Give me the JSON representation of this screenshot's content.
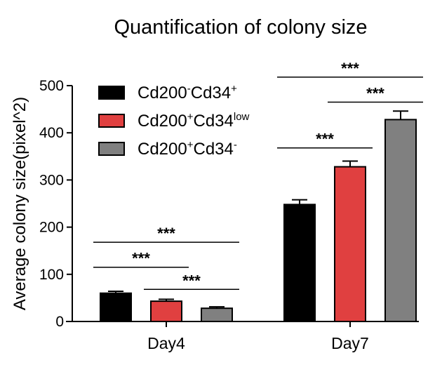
{
  "chart_data": {
    "type": "bar",
    "title": "Quantification of colony size",
    "xlabel": "",
    "ylabel": "Average colony size(pixel^2)",
    "ylim": [
      0,
      500
    ],
    "yticks": [
      0,
      100,
      200,
      300,
      400,
      500
    ],
    "categories": [
      "Day4",
      "Day7"
    ],
    "legend_position": "top-left",
    "series": [
      {
        "name": "Cd200-Cd34+",
        "label_base1": "Cd200",
        "label_sup1": "-",
        "label_base2": "Cd34",
        "label_sup2": "+",
        "color": "#000000",
        "values": [
          60,
          248
        ],
        "errors": [
          4,
          10
        ]
      },
      {
        "name": "Cd200+Cd34low",
        "label_base1": "Cd200",
        "label_sup1": "+",
        "label_base2": "Cd34",
        "label_sup2": "low",
        "color": "#e04040",
        "values": [
          43,
          328
        ],
        "errors": [
          4,
          12
        ]
      },
      {
        "name": "Cd200+Cd34-",
        "label_base1": "Cd200",
        "label_sup1": "+",
        "label_base2": "Cd34",
        "label_sup2": "-",
        "color": "#808080",
        "values": [
          28,
          428
        ],
        "errors": [
          3,
          18
        ]
      }
    ],
    "significance": [
      {
        "category": 0,
        "from": 0,
        "to": 1,
        "y": 115,
        "label": "***"
      },
      {
        "category": 0,
        "from": 1,
        "to": 2,
        "y": 68,
        "label": "***"
      },
      {
        "category": 0,
        "from": 0,
        "to": 2,
        "y": 168,
        "label": "***"
      },
      {
        "category": 1,
        "from": 0,
        "to": 1,
        "y": 368,
        "label": "***"
      },
      {
        "category": 1,
        "from": 1,
        "to": 2,
        "y": 465,
        "label": "***"
      },
      {
        "category": 1,
        "from": 0,
        "to": 2,
        "y": 518,
        "label": "***"
      }
    ]
  }
}
